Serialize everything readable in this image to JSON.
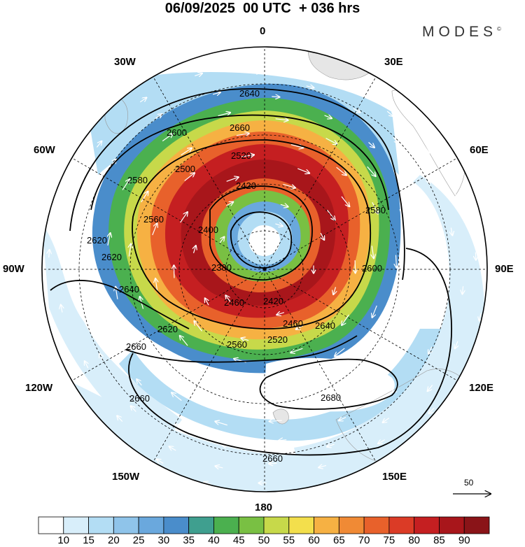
{
  "title": "06/09/2025  00 UTC  + 036 hrs",
  "brand": "MODES",
  "brand_mark": "©",
  "longitude_labels": {
    "top": "0",
    "bottom": "180",
    "w30": "30W",
    "e30": "30E",
    "w60": "60W",
    "e60": "60E",
    "w90": "90W",
    "e90": "90E",
    "w120": "120W",
    "e120": "120E",
    "w150": "150W",
    "e150": "150E"
  },
  "reference_vector": {
    "label": "50"
  },
  "colorbar": {
    "ticks": [
      "10",
      "15",
      "20",
      "25",
      "30",
      "35",
      "40",
      "45",
      "50",
      "55",
      "60",
      "65",
      "70",
      "75",
      "80",
      "85",
      "90"
    ],
    "colors": [
      "#ffffff",
      "#d8eefa",
      "#b3ddf4",
      "#8fc4ea",
      "#6aa8dd",
      "#4a8dcb",
      "#3f9f8f",
      "#4bb04f",
      "#79c043",
      "#c7d94a",
      "#f3df4c",
      "#f6b143",
      "#f08a35",
      "#e8612b",
      "#db3b26",
      "#c51f21",
      "#a8161b",
      "#8a1418"
    ]
  },
  "contour_labels": [
    "2640",
    "2600",
    "2660",
    "2620",
    "2580",
    "2560",
    "2520",
    "2500",
    "2460",
    "2420",
    "2400",
    "2380",
    "2620",
    "2640",
    "2660",
    "2680",
    "2660",
    "2620",
    "2580",
    "2600",
    "2560",
    "2520",
    "2460",
    "2420",
    "2640",
    "2660"
  ],
  "colors": {
    "jet_core": "#a8161b",
    "land": "#e6e6e6",
    "contour": "#000000",
    "vector": "#ffffff"
  }
}
